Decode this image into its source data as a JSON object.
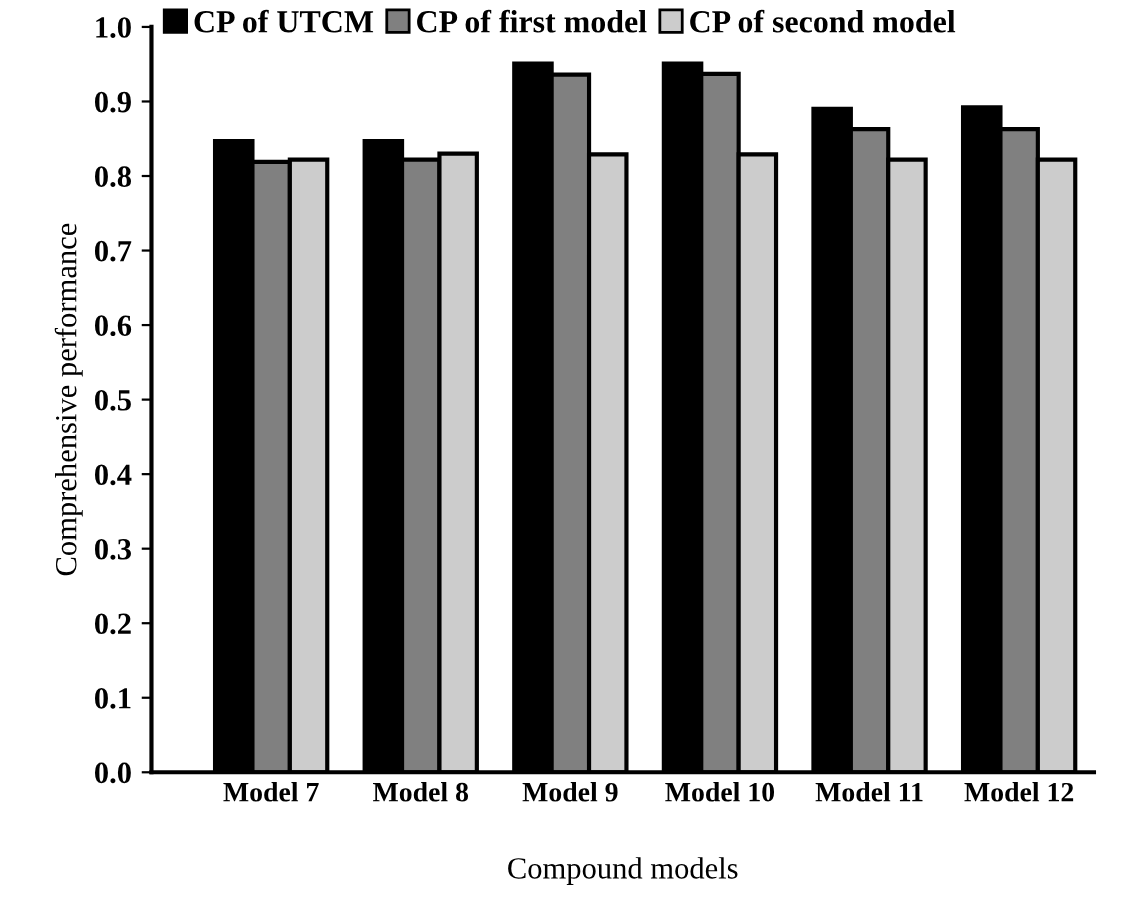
{
  "chart_data": {
    "type": "bar",
    "xlabel": "Compound models",
    "ylabel": "Comprehensive performance",
    "categories": [
      "Model 7",
      "Model 8",
      "Model 9",
      "Model 10",
      "Model 11",
      "Model 12"
    ],
    "series": [
      {
        "name": "CP of UTCM",
        "color": "#000000",
        "values": [
          0.847,
          0.847,
          0.951,
          0.951,
          0.89,
          0.892
        ]
      },
      {
        "name": "CP of first model",
        "color": "#808080",
        "values": [
          0.819,
          0.822,
          0.936,
          0.937,
          0.863,
          0.863
        ]
      },
      {
        "name": "CP of second model",
        "color": "#cccccc",
        "values": [
          0.822,
          0.83,
          0.829,
          0.829,
          0.822,
          0.822
        ]
      }
    ],
    "ylim": [
      0,
      1.0
    ],
    "yticks": [
      {
        "value": 0,
        "label": "0.0"
      },
      0.1,
      0.2,
      0.3,
      0.4,
      0.5,
      0.6,
      0.7,
      0.8,
      0.9,
      {
        "value": 1,
        "label": "1.0"
      }
    ],
    "grid": false,
    "legend": "top left"
  }
}
